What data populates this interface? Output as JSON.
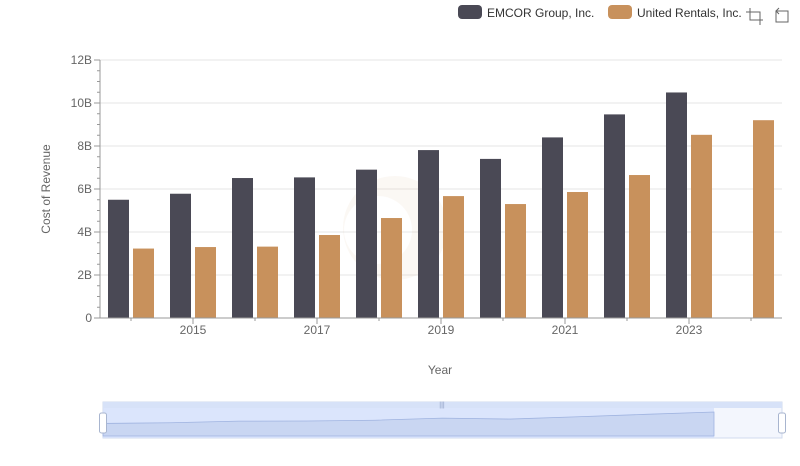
{
  "toolbar": {
    "icons": [
      "crop-icon",
      "restore-icon"
    ]
  },
  "chart_data": {
    "type": "bar",
    "title": "",
    "xlabel": "Year",
    "ylabel": "Cost of Revenue",
    "x": [
      2014,
      2015,
      2016,
      2017,
      2018,
      2019,
      2020,
      2021,
      2022,
      2023,
      2024
    ],
    "x_tick_labels": [
      "2015",
      "2017",
      "2019",
      "2021",
      "2023"
    ],
    "y_tick_labels": [
      "0",
      "2B",
      "4B",
      "6B",
      "8B",
      "10B",
      "12B"
    ],
    "ylim": [
      0,
      12000000000
    ],
    "grid": true,
    "legend_position": "top-right",
    "series": [
      {
        "name": "EMCOR Group, Inc.",
        "color": "#4a4955",
        "values": [
          5500000000,
          5780000000,
          6510000000,
          6540000000,
          6900000000,
          7810000000,
          7400000000,
          8400000000,
          9470000000,
          10490000000,
          null
        ]
      },
      {
        "name": "United Rentals, Inc.",
        "color": "#c8915c",
        "values": [
          3230000000,
          3300000000,
          3320000000,
          3860000000,
          4650000000,
          5670000000,
          5300000000,
          5860000000,
          6650000000,
          8520000000,
          9200000000
        ]
      }
    ]
  }
}
